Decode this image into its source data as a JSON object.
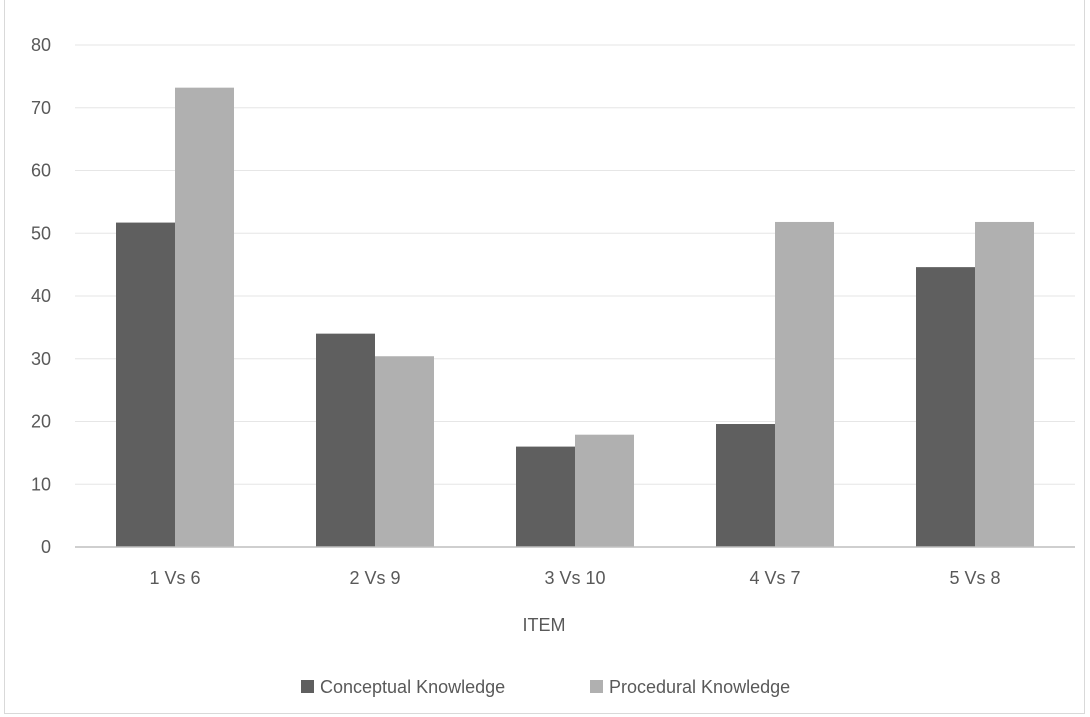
{
  "chart_data": {
    "type": "bar",
    "categories": [
      "1 Vs 6",
      "2 Vs 9",
      "3 Vs 10",
      "4 Vs 7",
      "5 Vs 8"
    ],
    "series": [
      {
        "name": "Conceptual Knowledge",
        "values": [
          51.7,
          34.0,
          16.0,
          19.6,
          44.6
        ],
        "color": "#5f5f5f"
      },
      {
        "name": "Procedural Knowledge",
        "values": [
          73.2,
          30.4,
          17.9,
          51.8,
          51.8
        ],
        "color": "#b0b0b0"
      }
    ],
    "title": "",
    "xlabel": "ITEM",
    "ylabel": "",
    "ylim": [
      0,
      80
    ],
    "yticks": [
      "0",
      "10",
      "20",
      "30",
      "40",
      "50",
      "60",
      "70",
      "80"
    ],
    "grid": true,
    "legend_position": "bottom"
  }
}
